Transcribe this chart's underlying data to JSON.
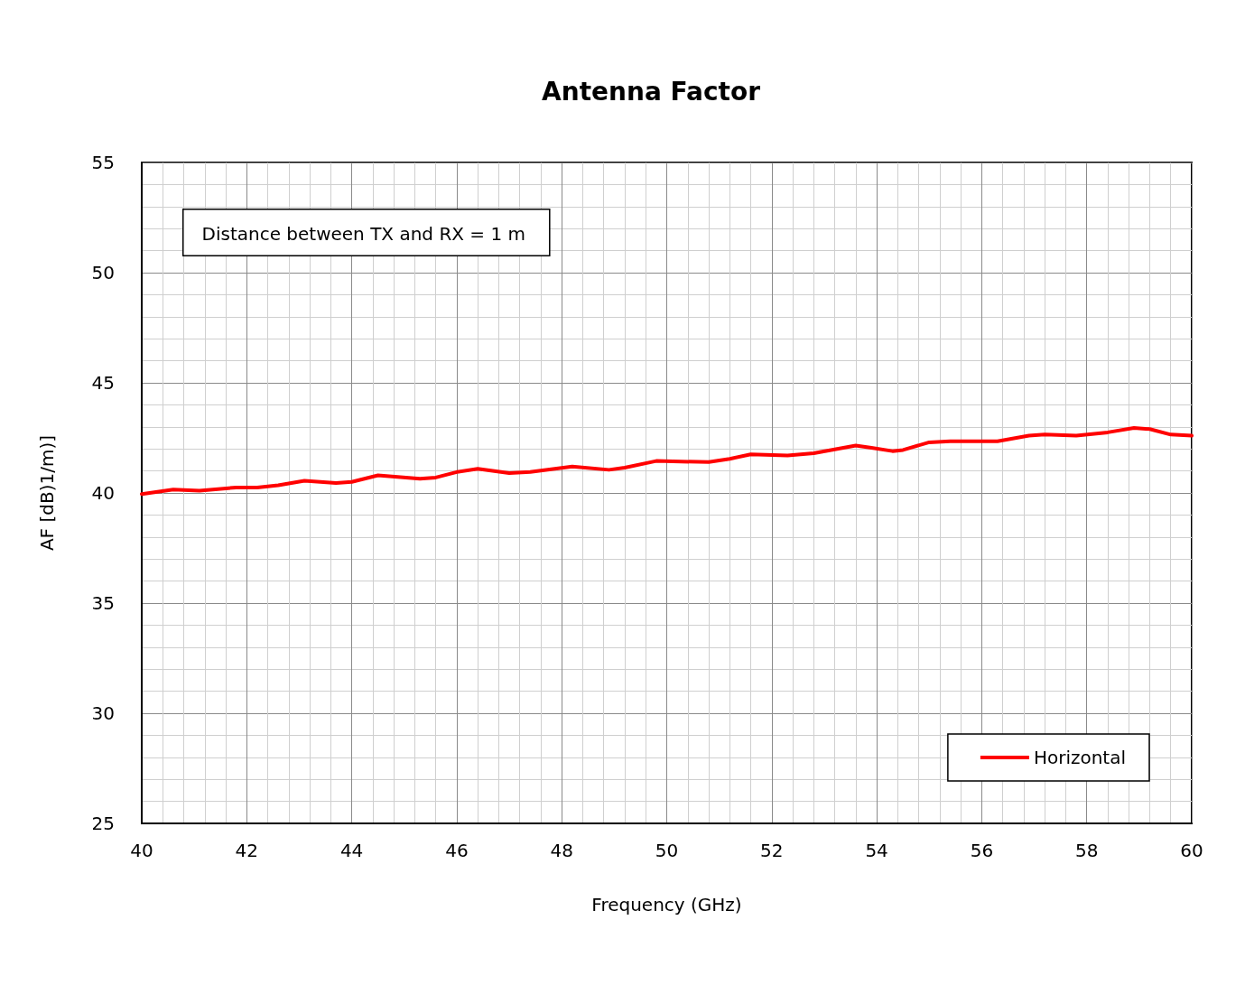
{
  "chart_data": {
    "type": "line",
    "title": "Antenna Factor",
    "xlabel": "Frequency (GHz)",
    "ylabel": "AF [dB)1/m)]",
    "annotations": [
      "Distance between TX and RX = 1 m"
    ],
    "x": [
      40,
      40.6,
      41.1,
      41.8,
      42.2,
      42.6,
      43.1,
      43.7,
      44.0,
      44.5,
      45.3,
      45.6,
      46.0,
      46.4,
      47.0,
      47.4,
      48.2,
      48.9,
      49.2,
      49.8,
      50.8,
      51.2,
      51.6,
      52.3,
      52.8,
      53.6,
      53.9,
      54.3,
      54.5,
      55.0,
      55.4,
      56.3,
      56.9,
      57.2,
      57.8,
      58.4,
      58.9,
      59.2,
      59.6,
      60
    ],
    "series": [
      {
        "name": "Horizontal",
        "color": "#ff0000",
        "values": [
          39.95,
          40.15,
          40.1,
          40.25,
          40.25,
          40.35,
          40.55,
          40.45,
          40.5,
          40.8,
          40.65,
          40.7,
          40.95,
          41.1,
          40.9,
          40.95,
          41.2,
          41.05,
          41.15,
          41.45,
          41.4,
          41.55,
          41.75,
          41.7,
          41.8,
          42.15,
          42.05,
          41.9,
          41.95,
          42.3,
          42.35,
          42.35,
          42.6,
          42.65,
          42.6,
          42.75,
          42.95,
          42.9,
          42.65,
          42.6
        ]
      }
    ],
    "xlim": [
      40,
      60
    ],
    "xticks": [
      40,
      42,
      44,
      46,
      48,
      50,
      52,
      54,
      56,
      58,
      60
    ],
    "ylim": [
      25,
      55
    ],
    "yticks": [
      25,
      30,
      35,
      40,
      45,
      50,
      55
    ],
    "grid": true,
    "legend": "bottom right",
    "marker": "none",
    "line_style": "solid"
  }
}
